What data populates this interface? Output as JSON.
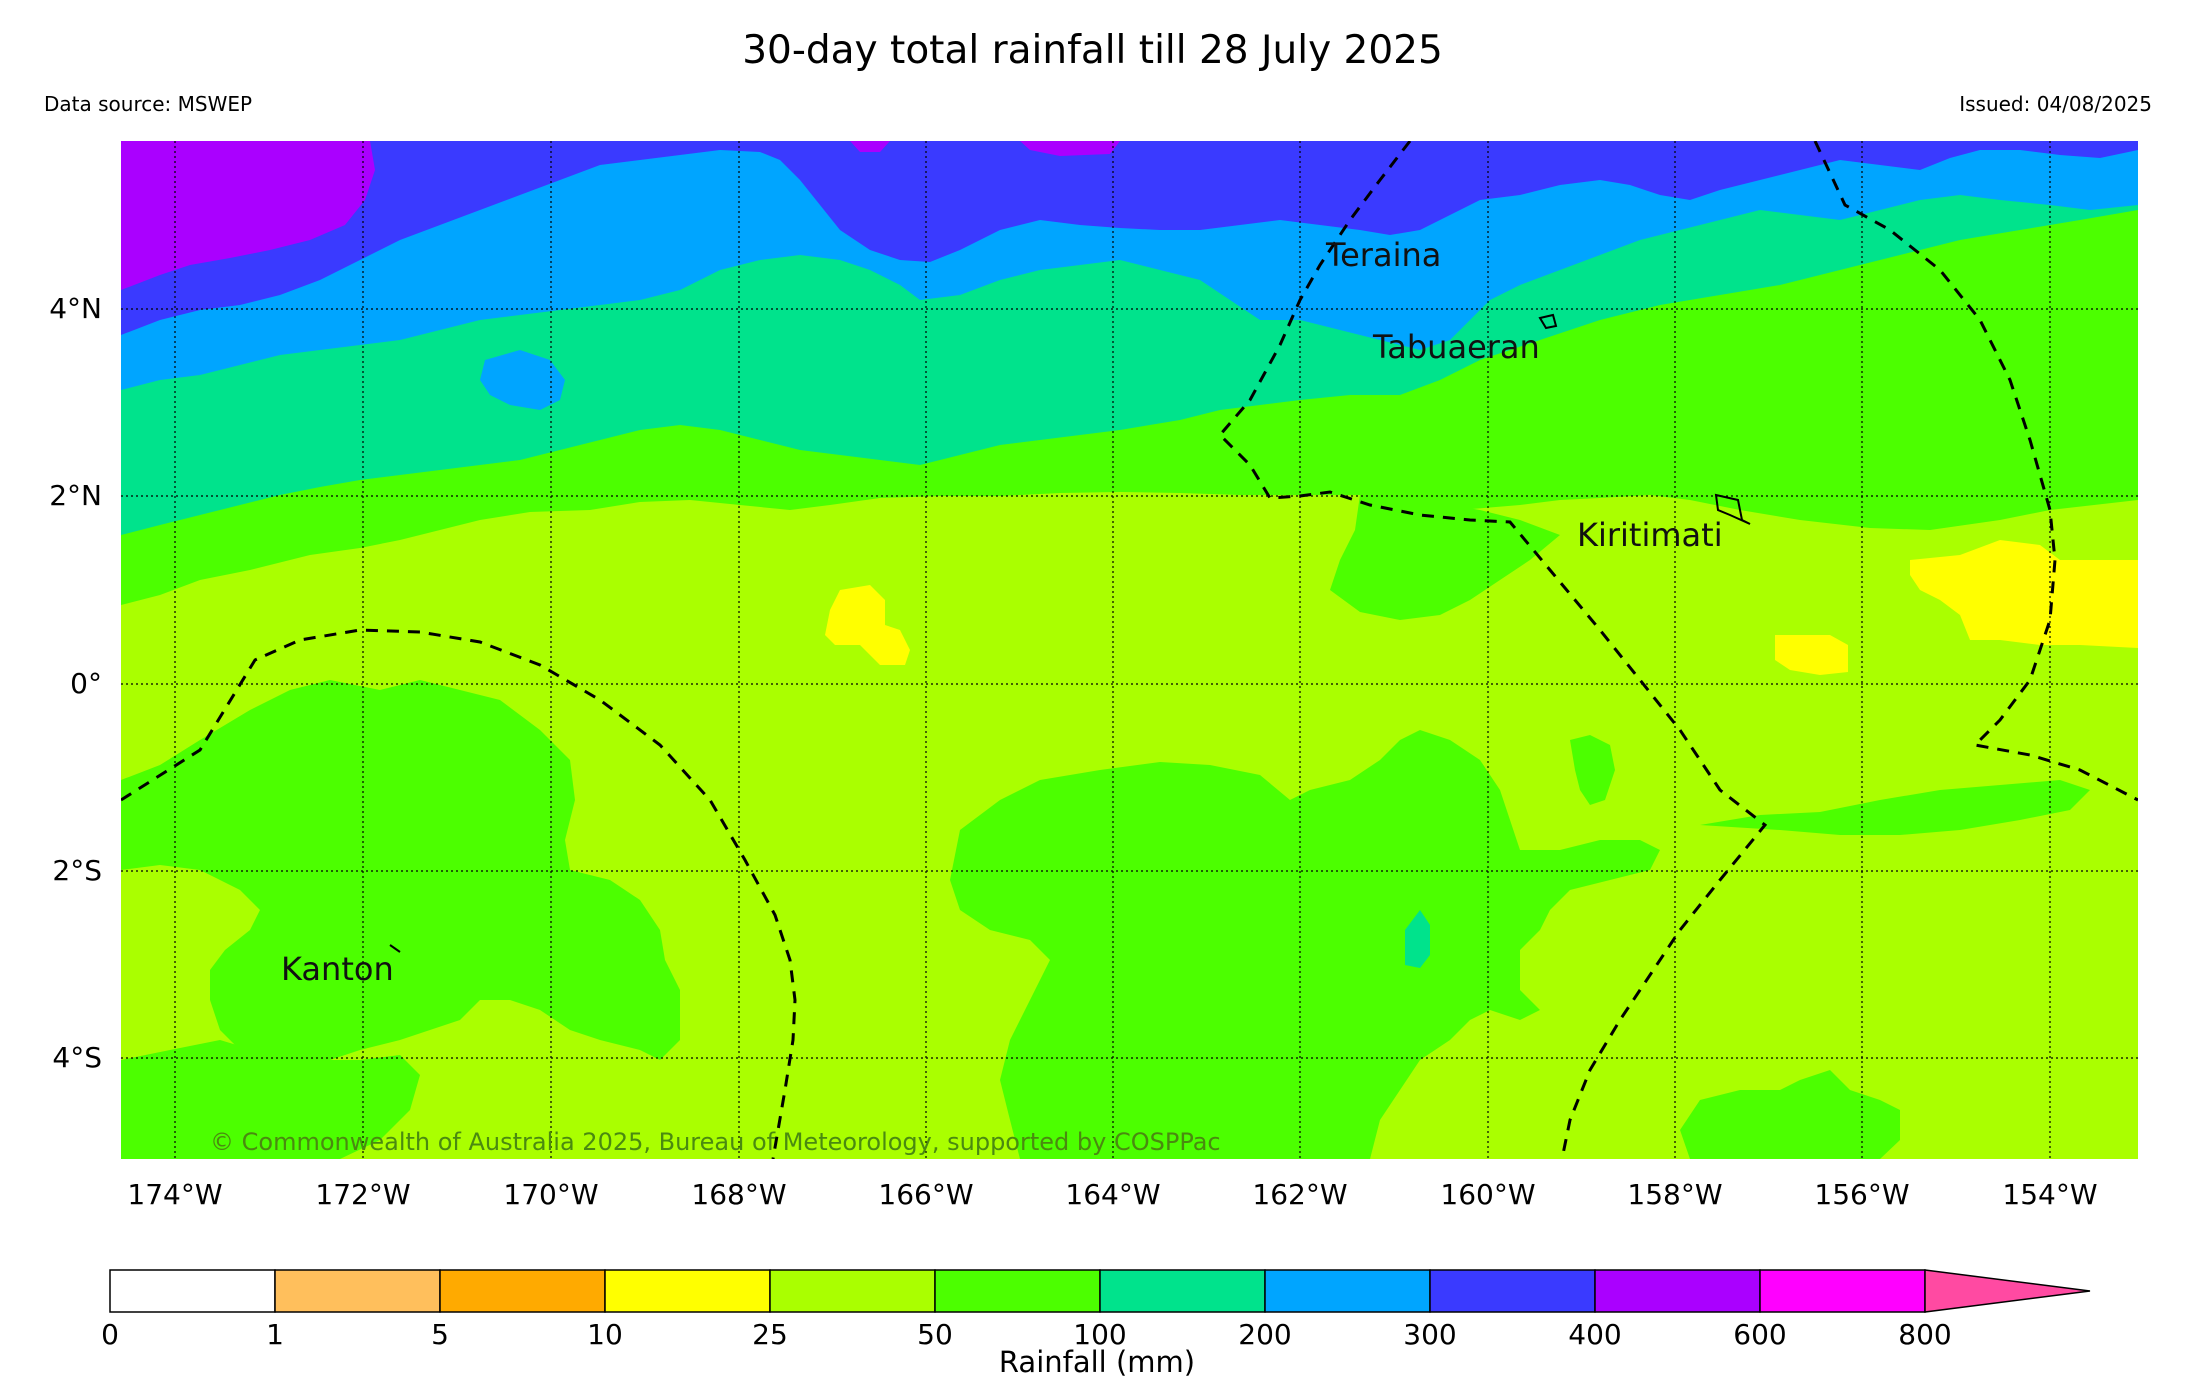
{
  "title": "30-day total rainfall till 28 July 2025",
  "source": "Data source: MSWEP",
  "issued": "Issued: 04/08/2025",
  "map": {
    "lon_ticks": [
      "174°W",
      "172°W",
      "170°W",
      "168°W",
      "166°W",
      "164°W",
      "162°W",
      "160°W",
      "158°W",
      "156°W",
      "154°W"
    ],
    "lat_ticks": [
      "4°N",
      "2°N",
      "0°",
      "2°S",
      "4°S"
    ],
    "lon_range": [
      -174.6,
      -153.0
    ],
    "lat_range": [
      -5.1,
      5.8
    ],
    "places": [
      {
        "name": "Teraina"
      },
      {
        "name": "Tabuaeran"
      },
      {
        "name": "Kiritimati"
      },
      {
        "name": "Kanton"
      }
    ],
    "copyright": "© Commonwealth of Australia 2025, Bureau of Meteorology, supported by COSPPac"
  },
  "colorbar": {
    "label": "Rainfall (mm)",
    "ticks": [
      "0",
      "1",
      "5",
      "10",
      "25",
      "50",
      "100",
      "200",
      "300",
      "400",
      "600",
      "800"
    ],
    "colors": [
      "#ffffff",
      "#ffbf5c",
      "#ffaa00",
      "#ffff00",
      "#aaff00",
      "#4cff00",
      "#00e38c",
      "#00a5ff",
      "#3a3aff",
      "#aa00ff",
      "#ff00ff",
      "#ff4aa2"
    ]
  },
  "legend_colors": {
    "c25_50": "#aaff00",
    "c50_100": "#4cff00",
    "c100_200": "#00e38c",
    "c200_300": "#00a5ff",
    "c300_400": "#3a3aff",
    "c400_600": "#aa00ff",
    "c10_25": "#ffff00"
  }
}
